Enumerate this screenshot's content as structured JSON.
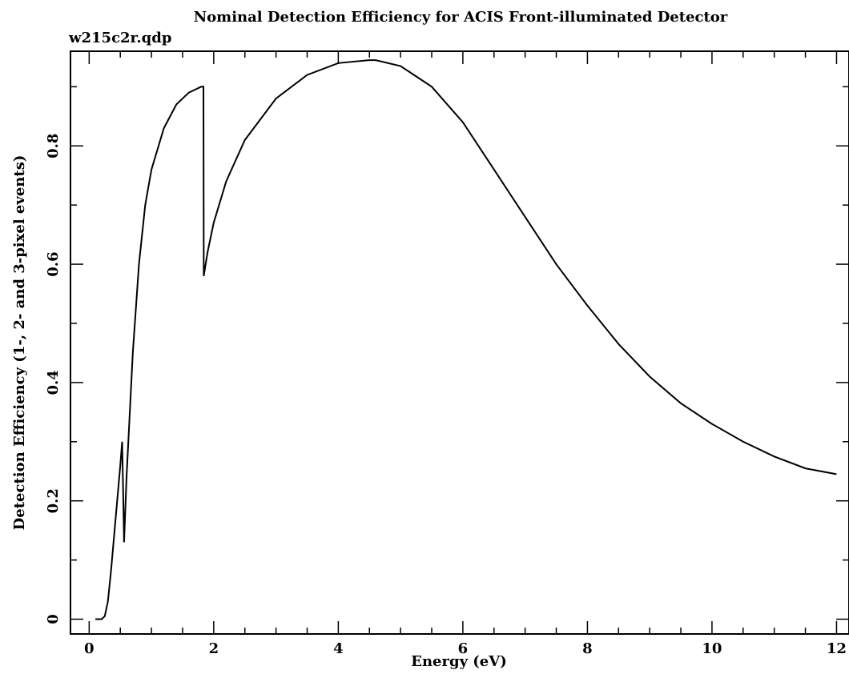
{
  "chart_data": {
    "type": "line",
    "title": "Nominal Detection Efficiency for ACIS Front-illuminated Detector",
    "subtitle": "w215c2r.qdp",
    "xlabel": "Energy (eV)",
    "ylabel": "Detection Efficiency (1-, 2- and 3-pixel events)",
    "xlim": [
      -0.3,
      12.2
    ],
    "ylim": [
      -0.025,
      0.96
    ],
    "x_ticks": [
      "0",
      "2",
      "4",
      "6",
      "8",
      "10",
      "12"
    ],
    "y_ticks": [
      "0",
      "0.2",
      "0.4",
      "0.6",
      "0.8"
    ],
    "grid": false,
    "series": [
      {
        "x": [
          0.1,
          0.2,
          0.25,
          0.3,
          0.35,
          0.4,
          0.45,
          0.5,
          0.53,
          0.545,
          0.56,
          0.6,
          0.7,
          0.8,
          0.9,
          1.0,
          1.2,
          1.4,
          1.6,
          1.7,
          1.8,
          1.835,
          1.84,
          1.9,
          2.0,
          2.2,
          2.5,
          3.0,
          3.5,
          4.0,
          4.5,
          4.6,
          5.0,
          5.5,
          6.0,
          6.5,
          7.0,
          7.5,
          8.0,
          8.5,
          9.0,
          9.5,
          10.0,
          10.5,
          11.0,
          11.5,
          12.0
        ],
        "y": [
          0.0,
          0.0,
          0.005,
          0.03,
          0.08,
          0.14,
          0.2,
          0.26,
          0.3,
          0.22,
          0.13,
          0.24,
          0.45,
          0.6,
          0.7,
          0.76,
          0.83,
          0.87,
          0.89,
          0.895,
          0.9,
          0.9,
          0.58,
          0.62,
          0.67,
          0.74,
          0.81,
          0.88,
          0.92,
          0.94,
          0.945,
          0.945,
          0.935,
          0.9,
          0.84,
          0.76,
          0.68,
          0.6,
          0.53,
          0.465,
          0.41,
          0.365,
          0.33,
          0.3,
          0.275,
          0.255,
          0.245
        ]
      }
    ]
  }
}
